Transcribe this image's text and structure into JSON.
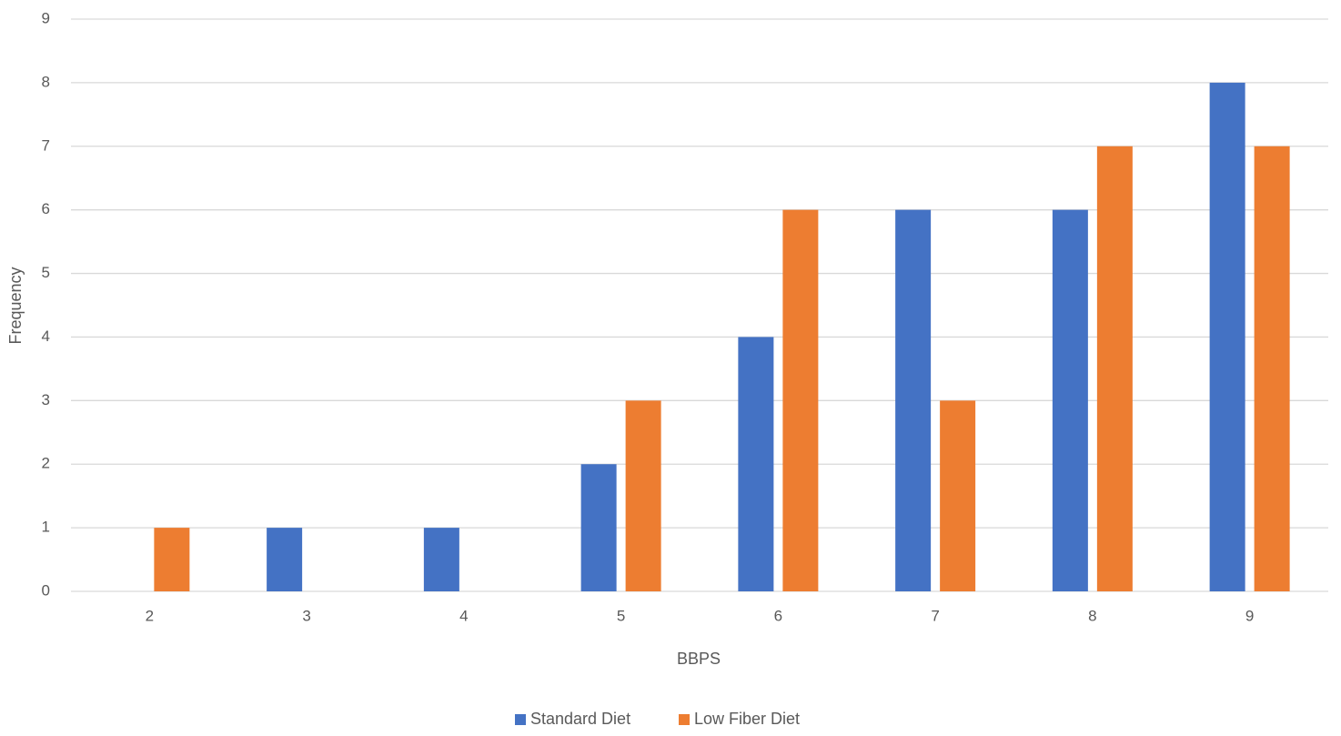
{
  "chart_data": {
    "type": "bar",
    "title": "",
    "xlabel": "BBPS",
    "ylabel": "Frequency",
    "categories": [
      "2",
      "3",
      "4",
      "5",
      "6",
      "7",
      "8",
      "9"
    ],
    "series": [
      {
        "name": "Standard Diet",
        "color": "#4472C4",
        "values": [
          0,
          1,
          1,
          2,
          4,
          6,
          6,
          8
        ]
      },
      {
        "name": "Low Fiber Diet",
        "color": "#ED7D31",
        "values": [
          1,
          0,
          0,
          3,
          6,
          3,
          7,
          7
        ]
      }
    ],
    "ylim": [
      0,
      9
    ],
    "yticks": [
      "0",
      "1",
      "2",
      "3",
      "4",
      "5",
      "6",
      "7",
      "8",
      "9"
    ],
    "grid": true,
    "legend_position": "bottom"
  }
}
